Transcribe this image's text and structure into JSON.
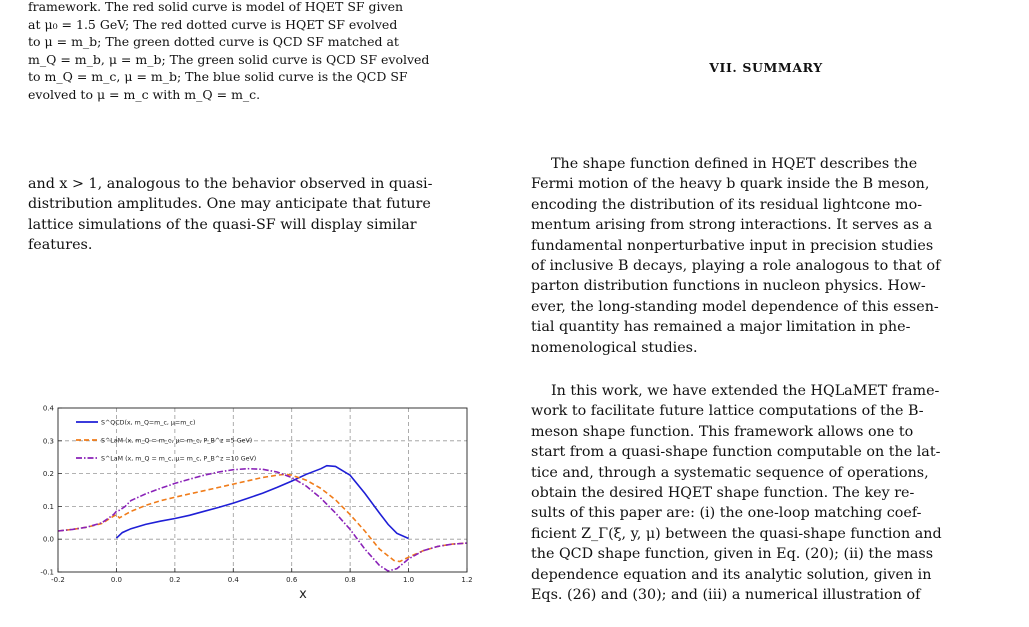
{
  "left_column": {
    "caption_lines": [
      "framework. The red solid curve is model of HQET SF given",
      "at μ₀ = 1.5 GeV; The red dotted curve is HQET SF evolved",
      "to μ = m_b; The green dotted curve is QCD SF matched at",
      "m_Q = m_b, μ = m_b; The green solid curve is QCD SF evolved",
      "to m_Q = m_c, μ = m_b; The blue solid curve is the QCD SF",
      "evolved to μ = m_c with m_Q = m_c."
    ],
    "paragraph_lines": [
      "and x > 1, analogous to the behavior observed in quasi-",
      "distribution amplitudes. One may anticipate that future",
      "lattice simulations of the quasi-SF will display similar",
      "features."
    ]
  },
  "right_column": {
    "section_title": "VII.   SUMMARY",
    "paragraph1_lines": [
      "The shape function defined in HQET describes the",
      "Fermi motion of the heavy b quark inside the B meson,",
      "encoding the distribution of its residual lightcone mo-",
      "mentum arising from strong interactions. It serves as a",
      "fundamental nonperturbative input in precision studies",
      "of inclusive B decays, playing a role analogous to that of",
      "parton distribution functions in nucleon physics. How-",
      "ever, the long-standing model dependence of this essen-",
      "tial quantity has remained a major limitation in phe-",
      "nomenological studies."
    ],
    "paragraph2_lines": [
      "In this work, we have extended the HQLaMET frame-",
      "work to facilitate future lattice computations of the B-",
      "meson shape function. This framework allows one to",
      "start from a quasi-shape function computable on the lat-",
      "tice and, through a systematic sequence of operations,",
      "obtain the desired HQET shape function. The key re-",
      "sults of this paper are: (i) the one-loop matching coef-",
      "ficient Z_Γ(ξ, y, μ) between the quasi-shape function and",
      "the QCD shape function, given in Eq. (20); (ii) the mass",
      "dependence equation and its analytic solution, given in",
      "Eqs. (26) and (30); and (iii) a numerical illustration of"
    ]
  },
  "chart_data": {
    "type": "line",
    "xlabel": "x",
    "ylabel": "",
    "xlim": [
      -0.2,
      1.2
    ],
    "ylim": [
      -0.1,
      0.4
    ],
    "x_ticks": [
      "-0.2",
      "0.0",
      "0.2",
      "0.4",
      "0.6",
      "0.8",
      "1.0",
      "1.2"
    ],
    "y_ticks": [
      "-0.1",
      "0.0",
      "0.1",
      "0.2",
      "0.3",
      "0.4"
    ],
    "grid": true,
    "legend_position": "top-left",
    "series": [
      {
        "name": "S^QCD(x, m_Q=m_c, μ=m_c)",
        "color": "#1f1fd6",
        "style": "solid",
        "points": [
          [
            0.0,
            0.003
          ],
          [
            0.02,
            0.02
          ],
          [
            0.05,
            0.032
          ],
          [
            0.1,
            0.045
          ],
          [
            0.15,
            0.055
          ],
          [
            0.2,
            0.063
          ],
          [
            0.25,
            0.073
          ],
          [
            0.3,
            0.085
          ],
          [
            0.35,
            0.097
          ],
          [
            0.4,
            0.11
          ],
          [
            0.45,
            0.125
          ],
          [
            0.5,
            0.14
          ],
          [
            0.55,
            0.158
          ],
          [
            0.6,
            0.177
          ],
          [
            0.65,
            0.198
          ],
          [
            0.7,
            0.215
          ],
          [
            0.72,
            0.224
          ],
          [
            0.75,
            0.222
          ],
          [
            0.8,
            0.195
          ],
          [
            0.85,
            0.14
          ],
          [
            0.9,
            0.08
          ],
          [
            0.93,
            0.045
          ],
          [
            0.96,
            0.018
          ],
          [
            1.0,
            0.002
          ]
        ]
      },
      {
        "name": "S^LaM (x, m_Q = m_c, μ= m_c, P_B^z =5 GeV)",
        "color": "#f07c1a",
        "style": "dashed",
        "points": [
          [
            -0.2,
            0.025
          ],
          [
            -0.15,
            0.03
          ],
          [
            -0.1,
            0.037
          ],
          [
            -0.05,
            0.048
          ],
          [
            -0.01,
            0.07
          ],
          [
            0.0,
            0.075
          ],
          [
            0.01,
            0.065
          ],
          [
            0.03,
            0.075
          ],
          [
            0.05,
            0.085
          ],
          [
            0.1,
            0.103
          ],
          [
            0.15,
            0.117
          ],
          [
            0.2,
            0.128
          ],
          [
            0.25,
            0.138
          ],
          [
            0.3,
            0.148
          ],
          [
            0.35,
            0.158
          ],
          [
            0.4,
            0.168
          ],
          [
            0.45,
            0.178
          ],
          [
            0.5,
            0.188
          ],
          [
            0.55,
            0.195
          ],
          [
            0.58,
            0.198
          ],
          [
            0.6,
            0.195
          ],
          [
            0.65,
            0.18
          ],
          [
            0.7,
            0.155
          ],
          [
            0.75,
            0.12
          ],
          [
            0.8,
            0.075
          ],
          [
            0.85,
            0.025
          ],
          [
            0.9,
            -0.03
          ],
          [
            0.95,
            -0.065
          ],
          [
            0.97,
            -0.068
          ],
          [
            1.0,
            -0.055
          ],
          [
            1.05,
            -0.035
          ],
          [
            1.1,
            -0.022
          ],
          [
            1.15,
            -0.015
          ],
          [
            1.2,
            -0.012
          ]
        ]
      },
      {
        "name": "S^LaM (x, m_Q = m_c, μ= m_c, P_B^z =10 GeV)",
        "color": "#8a22b8",
        "style": "dashdot",
        "points": [
          [
            -0.2,
            0.025
          ],
          [
            -0.15,
            0.03
          ],
          [
            -0.1,
            0.037
          ],
          [
            -0.05,
            0.05
          ],
          [
            -0.01,
            0.075
          ],
          [
            0.0,
            0.085
          ],
          [
            0.01,
            0.088
          ],
          [
            0.03,
            0.1
          ],
          [
            0.05,
            0.118
          ],
          [
            0.1,
            0.138
          ],
          [
            0.15,
            0.155
          ],
          [
            0.2,
            0.17
          ],
          [
            0.25,
            0.183
          ],
          [
            0.3,
            0.195
          ],
          [
            0.35,
            0.205
          ],
          [
            0.4,
            0.212
          ],
          [
            0.45,
            0.215
          ],
          [
            0.5,
            0.213
          ],
          [
            0.55,
            0.205
          ],
          [
            0.6,
            0.188
          ],
          [
            0.65,
            0.162
          ],
          [
            0.7,
            0.125
          ],
          [
            0.75,
            0.08
          ],
          [
            0.8,
            0.03
          ],
          [
            0.85,
            -0.03
          ],
          [
            0.9,
            -0.08
          ],
          [
            0.93,
            -0.097
          ],
          [
            0.96,
            -0.09
          ],
          [
            1.0,
            -0.06
          ],
          [
            1.05,
            -0.035
          ],
          [
            1.1,
            -0.022
          ],
          [
            1.15,
            -0.015
          ],
          [
            1.2,
            -0.012
          ]
        ]
      }
    ]
  }
}
